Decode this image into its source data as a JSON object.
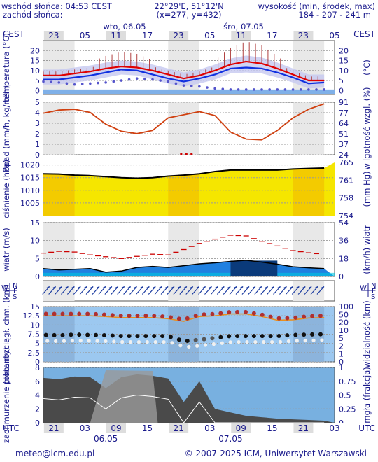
{
  "header": {
    "sunrise": "wschód słońca: 04:53 CEST",
    "sunset": "zachód słońca:",
    "coords": "22°29'E, 51°12'N",
    "grid": "(x=277, y=432)",
    "elev_label": "wysokość (min, środek, max)",
    "elev_values": "184 - 207 - 241 m"
  },
  "time_axis": {
    "tz_top": "CEST",
    "tz_bottom": "UTC",
    "top_hours": [
      "23",
      "05",
      "11",
      "17",
      "23",
      "05",
      "11",
      "17",
      "23",
      "05"
    ],
    "bottom_hours": [
      "21",
      "03",
      "09",
      "15",
      "21",
      "03",
      "09",
      "15",
      "21",
      "03"
    ],
    "top_dates": [
      "wto, 06.05",
      "śro, 07.05"
    ],
    "bottom_dates": [
      "06.05",
      "07.05"
    ]
  },
  "footer": {
    "email": "meteo@icm.edu.pl",
    "copyright": "© 2007-2025 ICM, Uniwersytet Warszawski"
  },
  "colors": {
    "accent": "#1a1a8c",
    "temp": "#e00000",
    "dew": "#1030e0",
    "humidity": "#d04010",
    "pressure_fill": "#f5e600",
    "wind": "#cc0000"
  },
  "chart_data": [
    {
      "type": "line",
      "title": "",
      "ylabel": "temperatura (°C)",
      "ylabel_right": "(°C)",
      "ylim": [
        -2,
        25
      ],
      "yticks": [
        0,
        5,
        10,
        15,
        20
      ],
      "x_hours": [
        0,
        3,
        6,
        9,
        12,
        15,
        18,
        21,
        24,
        27,
        30,
        33,
        36,
        39,
        42,
        45,
        48,
        51,
        54
      ],
      "series": [
        {
          "values": [
            7.5,
            7.5,
            8.5,
            9.5,
            11,
            12,
            11.5,
            10,
            8,
            6,
            7.5,
            10,
            13,
            14.5,
            13.5,
            11,
            8,
            5,
            5
          ]
        },
        {
          "values": [
            5.5,
            5.5,
            6.5,
            7.5,
            9,
            10.5,
            10,
            8,
            6,
            4.5,
            6,
            8,
            11,
            11.5,
            11,
            9,
            6.5,
            3.5,
            4
          ]
        },
        {
          "values": [
            4.5,
            4,
            3,
            3.5,
            4,
            5,
            6,
            5.5,
            4.5,
            2.5,
            2,
            1,
            0.5,
            0.5,
            0.5,
            0.5,
            0.5,
            0.5,
            0.5
          ]
        }
      ]
    },
    {
      "type": "line",
      "title": "",
      "ylabel": "opad (mm/h, kg/m²h)",
      "ylabel_right": "wilgotność wzgl. (%)",
      "ylim": [
        0,
        5
      ],
      "yticks": [
        0,
        1,
        2,
        3,
        4,
        5
      ],
      "yticks_right": [
        24,
        37,
        51,
        64,
        77,
        91
      ],
      "x_hours": [
        0,
        3,
        6,
        9,
        12,
        15,
        18,
        21,
        24,
        27,
        30,
        33,
        36,
        39,
        42,
        45,
        48,
        51,
        54
      ],
      "series": [
        {
          "values": [
            77,
            81,
            82,
            78,
            63,
            54,
            51,
            55,
            71,
            75,
            79,
            74,
            53,
            44,
            43,
            55,
            71,
            82,
            89
          ]
        }
      ]
    },
    {
      "type": "area",
      "title": "",
      "ylabel": "ciśnienie (hPa)",
      "ylabel_right": "(mm Hg)",
      "ylim": [
        1000,
        1021
      ],
      "yticks": [
        1005,
        1010,
        1015,
        1020
      ],
      "yticks_right": [
        754,
        758,
        761,
        765
      ],
      "x_hours": [
        0,
        3,
        6,
        9,
        12,
        15,
        18,
        21,
        24,
        27,
        30,
        33,
        36,
        39,
        42,
        45,
        48,
        51,
        54
      ],
      "series": [
        {
          "values": [
            1016.5,
            1016.4,
            1016,
            1015.8,
            1015.4,
            1015,
            1014.8,
            1015,
            1015.6,
            1016,
            1016.5,
            1017.4,
            1018,
            1018,
            1018,
            1018,
            1018.4,
            1018.6,
            1018.8
          ]
        }
      ]
    },
    {
      "type": "line",
      "title": "",
      "ylabel": "wiatr (m/s)",
      "ylabel_right": "(km/h) wiatr",
      "ylim": [
        0,
        15
      ],
      "yticks": [
        0,
        5,
        10,
        15
      ],
      "yticks_right": [
        0,
        18,
        36,
        54
      ],
      "x_hours": [
        0,
        3,
        6,
        9,
        12,
        15,
        18,
        21,
        24,
        27,
        30,
        33,
        36,
        39,
        42,
        45,
        48,
        51,
        54
      ],
      "series": [
        {
          "values": [
            2.2,
            1.8,
            2,
            2.2,
            1.2,
            1.5,
            2.5,
            2.8,
            2.5,
            3,
            3.5,
            3.8,
            4.2,
            4.5,
            4,
            3.4,
            2.7,
            2.4,
            2.2
          ]
        },
        {
          "values": [
            6.5,
            7,
            6.8,
            6,
            5.5,
            5,
            5.6,
            6.2,
            6,
            7.5,
            9.2,
            10.4,
            11.5,
            11.3,
            9.8,
            8.5,
            7.2,
            6.6,
            6.1
          ]
        }
      ]
    },
    {
      "type": "scatter",
      "title": "",
      "ylabel": "pion. rozciągł. chm. (km)",
      "ylabel_right": "widzialność (km)",
      "ylim": [
        0,
        15
      ],
      "yticks": [
        0,
        2.5,
        5,
        7.5,
        10,
        12.5,
        15
      ],
      "yticks_right": [
        0,
        1,
        2,
        5,
        10,
        20,
        50,
        100
      ],
      "x_hours": [
        0,
        3,
        6,
        9,
        12,
        15,
        18,
        21,
        24,
        27,
        30,
        33,
        36,
        39,
        42,
        45,
        48,
        51,
        54
      ],
      "series": [
        {
          "values": [
            13,
            13,
            13,
            13,
            12.8,
            12.5,
            12.5,
            12.5,
            12.2,
            11.5,
            12.8,
            13,
            13.5,
            13.5,
            12.8,
            11.8,
            11.9,
            12.4,
            12.5
          ]
        },
        {
          "values": [
            7.3,
            7.2,
            7.4,
            7.3,
            7.2,
            7,
            7,
            7,
            7,
            5.6,
            6,
            6.5,
            7,
            7,
            7,
            7,
            7.3,
            7.4,
            7.5
          ]
        }
      ]
    },
    {
      "type": "area",
      "title": "",
      "ylabel": "zachmurzenie (oktanty)",
      "ylabel_right": "mgła (frakcja)",
      "ylim": [
        0,
        8
      ],
      "yticks": [
        0,
        2,
        4,
        6,
        8
      ],
      "yticks_right": [
        0,
        0.25,
        0.5,
        0.75,
        1
      ],
      "x_hours": [
        0,
        3,
        6,
        9,
        12,
        15,
        18,
        21,
        24,
        27,
        30,
        33,
        36,
        39,
        42,
        45,
        48,
        51,
        54
      ],
      "series": [
        {
          "values": [
            6.5,
            6.3,
            6.7,
            6.6,
            5,
            6.6,
            7,
            6.8,
            6.4,
            3,
            6,
            2,
            1.5,
            1,
            0.8,
            0.6,
            0.5,
            0.4,
            0.3
          ]
        }
      ]
    }
  ]
}
